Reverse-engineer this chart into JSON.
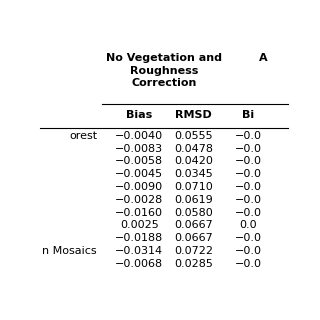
{
  "col_header_main1": "No Vegetation and\nRoughness\nCorrection",
  "col_header_main2": "A",
  "col_header_sub": [
    "Bias",
    "RMSD",
    "Bi"
  ],
  "row_labels": [
    "orest",
    "",
    "",
    "",
    "",
    "",
    "",
    "",
    "",
    "n Mosaics",
    ""
  ],
  "bias_col": [
    "−0.0040",
    "−0.0083",
    "−0.0058",
    "−0.0045",
    "−0.0090",
    "−0.0028",
    "−0.0160",
    "0.0025",
    "−0.0188",
    "−0.0314",
    "−0.0068"
  ],
  "rmsd_col": [
    "0.0555",
    "0.0478",
    "0.0420",
    "0.0345",
    "0.0710",
    "0.0619",
    "0.0580",
    "0.0667",
    "0.0667",
    "0.0722",
    "0.0285"
  ],
  "bias2_col": [
    "−0.0",
    "−0.0",
    "−0.0",
    "−0.0",
    "−0.0",
    "−0.0",
    "−0.0",
    "0.0",
    "−0.0",
    "−0.0",
    "−0.0"
  ],
  "bg_color": "#ffffff",
  "text_color": "#000000",
  "header_fontsize": 8.0,
  "data_fontsize": 8.0
}
